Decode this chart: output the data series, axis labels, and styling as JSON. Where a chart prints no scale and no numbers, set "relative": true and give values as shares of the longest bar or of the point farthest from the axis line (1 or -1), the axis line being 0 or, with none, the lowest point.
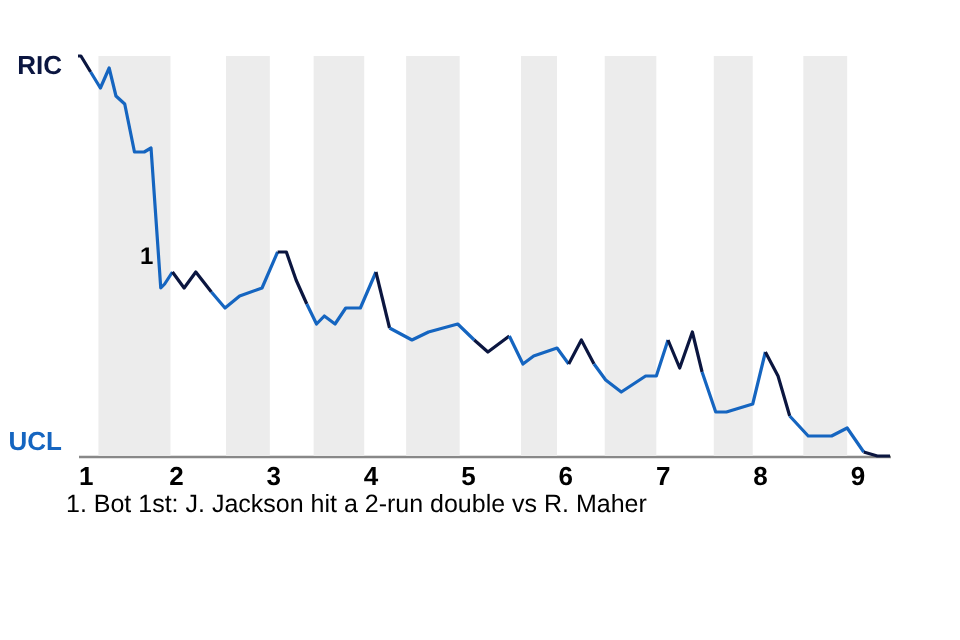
{
  "chart_data": {
    "type": "line",
    "relative": true,
    "series": [
      {
        "color": "#0b1640",
        "x": [
          1.0,
          1.03,
          1.13
        ],
        "values": [
          1,
          1,
          0.96
        ]
      },
      {
        "color": "#1565c0",
        "x": [
          1.13,
          1.23,
          1.32,
          1.39,
          1.48,
          1.58,
          1.68,
          1.75,
          1.85,
          1.89,
          1.97
        ],
        "values": [
          0.96,
          0.92,
          0.97,
          0.9,
          0.88,
          0.76,
          0.76,
          0.77,
          0.42,
          0.43,
          0.46
        ]
      },
      {
        "color": "#0b1640",
        "x": [
          1.97,
          2.09,
          2.21,
          2.37
        ],
        "values": [
          0.46,
          0.42,
          0.46,
          0.41
        ]
      },
      {
        "color": "#1565c0",
        "x": [
          2.37,
          2.51,
          2.66,
          2.89,
          3.05
        ],
        "values": [
          0.41,
          0.37,
          0.4,
          0.42,
          0.51
        ]
      },
      {
        "color": "#0b1640",
        "x": [
          3.05,
          3.14,
          3.24,
          3.35
        ],
        "values": [
          0.51,
          0.51,
          0.44,
          0.38
        ]
      },
      {
        "color": "#1565c0",
        "x": [
          3.35,
          3.45,
          3.53,
          3.64,
          3.75,
          3.9,
          4.06
        ],
        "values": [
          0.38,
          0.33,
          0.35,
          0.33,
          0.37,
          0.37,
          0.46
        ]
      },
      {
        "color": "#0b1640",
        "x": [
          4.06,
          4.2
        ],
        "values": [
          0.46,
          0.32
        ]
      },
      {
        "color": "#1565c0",
        "x": [
          4.2,
          4.43,
          4.6,
          4.9,
          5.07
        ],
        "values": [
          0.32,
          0.29,
          0.31,
          0.33,
          0.29
        ]
      },
      {
        "color": "#0b1640",
        "x": [
          5.07,
          5.21,
          5.43
        ],
        "values": [
          0.29,
          0.26,
          0.3
        ]
      },
      {
        "color": "#1565c0",
        "x": [
          5.43,
          5.57,
          5.68,
          5.92,
          6.04
        ],
        "values": [
          0.3,
          0.23,
          0.25,
          0.27,
          0.23
        ]
      },
      {
        "color": "#0b1640",
        "x": [
          6.04,
          6.17,
          6.3
        ],
        "values": [
          0.23,
          0.29,
          0.23
        ]
      },
      {
        "color": "#1565c0",
        "x": [
          6.3,
          6.42,
          6.58,
          6.83,
          6.94,
          7.06
        ],
        "values": [
          0.23,
          0.19,
          0.16,
          0.2,
          0.2,
          0.29
        ]
      },
      {
        "color": "#0b1640",
        "x": [
          7.06,
          7.18,
          7.31,
          7.41
        ],
        "values": [
          0.29,
          0.22,
          0.31,
          0.21
        ]
      },
      {
        "color": "#1565c0",
        "x": [
          7.41,
          7.55,
          7.66,
          7.93,
          8.06
        ],
        "values": [
          0.21,
          0.11,
          0.11,
          0.13,
          0.26
        ]
      },
      {
        "color": "#0b1640",
        "x": [
          8.06,
          8.19,
          8.31
        ],
        "values": [
          0.26,
          0.2,
          0.1
        ]
      },
      {
        "color": "#1565c0",
        "x": [
          8.31,
          8.5,
          8.74,
          8.9,
          9.07
        ],
        "values": [
          0.1,
          0.05,
          0.05,
          0.07,
          0.01
        ]
      },
      {
        "color": "#0b1640",
        "x": [
          9.07,
          9.21,
          9.34
        ],
        "values": [
          0.01,
          0,
          0
        ]
      }
    ],
    "xlim": [
      1,
      9.34
    ],
    "xticks": [
      1,
      2,
      3,
      4,
      5,
      6,
      7,
      8,
      9
    ],
    "bands": [
      {
        "axis": "x",
        "from": 1.21,
        "to": 1.95,
        "color": "#ececec"
      },
      {
        "axis": "x",
        "from": 2.52,
        "to": 2.97,
        "color": "#ececec"
      },
      {
        "axis": "x",
        "from": 3.42,
        "to": 3.94,
        "color": "#ececec"
      },
      {
        "axis": "x",
        "from": 4.37,
        "to": 4.92,
        "color": "#ececec"
      },
      {
        "axis": "x",
        "from": 5.55,
        "to": 5.92,
        "color": "#ececec"
      },
      {
        "axis": "x",
        "from": 6.41,
        "to": 6.94,
        "color": "#ececec"
      },
      {
        "axis": "x",
        "from": 7.53,
        "to": 7.93,
        "color": "#ececec"
      },
      {
        "axis": "x",
        "from": 8.45,
        "to": 8.9,
        "color": "#ececec"
      }
    ],
    "annotations": [
      "RIC",
      "UCL",
      {
        "text": "1",
        "x": 1.89,
        "y": 0.43
      },
      "1. Bot 1st: J. Jackson hit a 2-run double vs R. Maher"
    ]
  }
}
